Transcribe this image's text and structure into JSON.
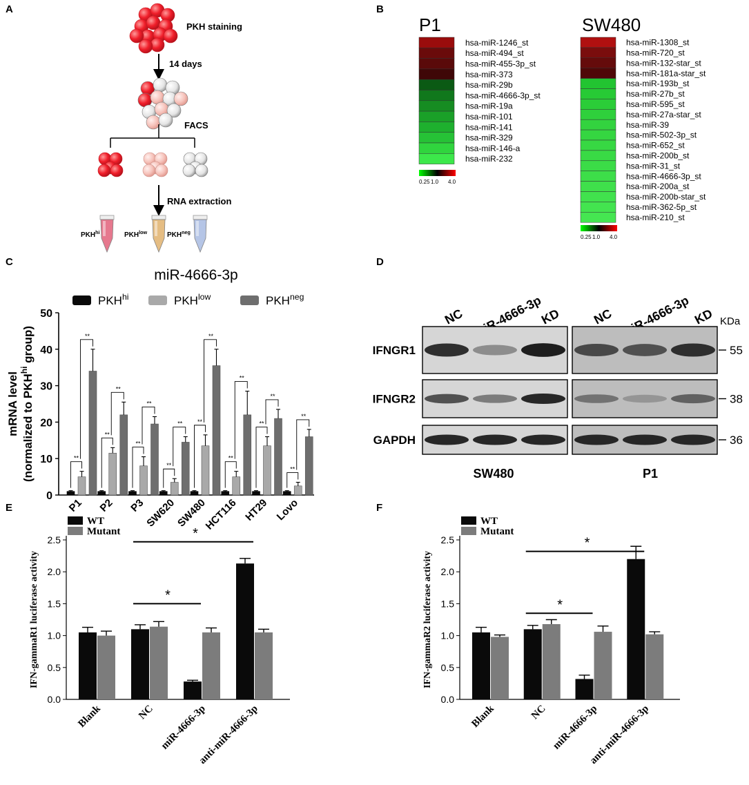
{
  "panels": {
    "A": {
      "letter": "A",
      "steps": {
        "staining": "PKH staining",
        "days": "14 days",
        "facs": "FACS",
        "rna": "RNA extraction"
      },
      "tubes": [
        {
          "base": "PKH",
          "sup": "hi",
          "color": "#e46a82"
        },
        {
          "base": "PKH",
          "sup": "low",
          "color": "#e3b676"
        },
        {
          "base": "PKH",
          "sup": "neg",
          "color": "#aebfe4"
        }
      ]
    },
    "B": {
      "letter": "B",
      "color_scale": {
        "labels": [
          "0.25",
          "1.0",
          "4.0"
        ],
        "low": "#00ff00",
        "mid": "#000000",
        "high": "#ff0000"
      },
      "heatmaps": [
        {
          "title": "P1",
          "rows": [
            {
              "label": "hsa-miR-1246_st",
              "color": "#9a0c0c"
            },
            {
              "label": "hsa-miR-494_st",
              "color": "#6a0b0b"
            },
            {
              "label": "hsa-miR-455-3p_st",
              "color": "#5a0a0a"
            },
            {
              "label": "hsa-miR-373",
              "color": "#3f0707"
            },
            {
              "label": "hsa-miR-29b",
              "color": "#0b5a14"
            },
            {
              "label": "hsa-miR-4666-3p_st",
              "color": "#10781c"
            },
            {
              "label": "hsa-miR-19a",
              "color": "#168c22"
            },
            {
              "label": "hsa-miR-101",
              "color": "#1aa028"
            },
            {
              "label": "hsa-miR-141",
              "color": "#1eb02e"
            },
            {
              "label": "hsa-miR-329",
              "color": "#26c236"
            },
            {
              "label": "hsa-miR-146-a",
              "color": "#30d53e"
            },
            {
              "label": "hsa-miR-232",
              "color": "#3ce84a"
            }
          ]
        },
        {
          "title": "SW480",
          "rows": [
            {
              "label": "hsa-miR-1308_st",
              "color": "#b01010"
            },
            {
              "label": "hsa-miR-720_st",
              "color": "#7a0d0d"
            },
            {
              "label": "hsa-miR-132-star_st",
              "color": "#650b0b"
            },
            {
              "label": "hsa-miR-181a-star_st",
              "color": "#4f0808"
            },
            {
              "label": "hsa-miR-193b_st",
              "color": "#22c431"
            },
            {
              "label": "hsa-miR-27b_st",
              "color": "#27ca35"
            },
            {
              "label": "hsa-miR-595_st",
              "color": "#2bcd38"
            },
            {
              "label": "hsa-miR-27a-star_st",
              "color": "#2fd03c"
            },
            {
              "label": "hsa-miR-39",
              "color": "#33d33f"
            },
            {
              "label": "hsa-miR-502-3p_st",
              "color": "#35d641"
            },
            {
              "label": "hsa-miR-652_st",
              "color": "#37d843"
            },
            {
              "label": "hsa-miR-200b_st",
              "color": "#39da45"
            },
            {
              "label": "hsa-miR-31_st",
              "color": "#3bdc47"
            },
            {
              "label": "hsa-miR-4666-3p_st",
              "color": "#3dde49"
            },
            {
              "label": "hsa-miR-200a_st",
              "color": "#3fe04b"
            },
            {
              "label": "hsa-miR-200b-star_st",
              "color": "#41e24d"
            },
            {
              "label": "hsa-miR-362-5p_st",
              "color": "#43e44f"
            },
            {
              "label": "hsa-miR-210_st",
              "color": "#45e651"
            }
          ]
        }
      ]
    },
    "C": {
      "letter": "C",
      "sig": "**"
    },
    "D": {
      "letter": "D",
      "lanes": [
        "NC",
        "miR-4666-3p",
        "KD"
      ],
      "kda_label": "KDa",
      "proteins": [
        {
          "name": "IFNGR1",
          "kda": "55"
        },
        {
          "name": "IFNGR2",
          "kda": "38"
        },
        {
          "name": "GAPDH",
          "kda": "36"
        }
      ],
      "cells": [
        "SW480",
        "P1"
      ],
      "band_intensity": {
        "SW480": [
          [
            0.9,
            0.35,
            1.0
          ],
          [
            0.7,
            0.45,
            0.95
          ],
          [
            0.95,
            0.95,
            0.95
          ]
        ],
        "P1": [
          [
            0.75,
            0.7,
            0.9
          ],
          [
            0.5,
            0.3,
            0.6
          ],
          [
            0.95,
            0.95,
            0.95
          ]
        ]
      }
    },
    "E": {
      "letter": "E",
      "sig": "*"
    },
    "F": {
      "letter": "F",
      "sig": "*"
    }
  },
  "chart_data": [
    {
      "panel": "C",
      "type": "bar",
      "title": "miR-4666-3p",
      "ylabel_line1": "mRNA level",
      "ylabel_line2_pre": "(normalized to PKH",
      "ylabel_line2_sup": "hi",
      "ylabel_line2_post": " group)",
      "ylim": [
        0,
        50
      ],
      "yticks": [
        "0",
        "10",
        "20",
        "30",
        "40",
        "50"
      ],
      "categories": [
        "P1",
        "P2",
        "P3",
        "SW620",
        "SW480",
        "HCT116",
        "HT29",
        "Lovo"
      ],
      "legend_position": "top",
      "series": [
        {
          "name": "PKH",
          "sup": "hi",
          "color": "#0a0a0a",
          "values": [
            1,
            1,
            1,
            1,
            1,
            1,
            1,
            1
          ],
          "errors": [
            0.2,
            0.2,
            0.2,
            0.2,
            0.2,
            0.2,
            0.2,
            0.2
          ]
        },
        {
          "name": "PKH",
          "sup": "low",
          "color": "#a9a9a9",
          "values": [
            5,
            11.5,
            8,
            3.5,
            13.5,
            5,
            13.5,
            2.5
          ],
          "errors": [
            1.5,
            1.5,
            2.5,
            1,
            3,
            1.5,
            2.5,
            1
          ]
        },
        {
          "name": "PKH",
          "sup": "neg",
          "color": "#6e6e6e",
          "values": [
            34,
            22,
            19.5,
            14.5,
            35.5,
            22,
            21,
            16
          ],
          "errors": [
            6,
            3.5,
            2,
            1.5,
            4.5,
            6.5,
            2.5,
            2
          ]
        }
      ]
    },
    {
      "panel": "E",
      "type": "bar",
      "ylabel": "IFN-gammaR1 luciferase activity",
      "ylim": [
        0,
        2.5
      ],
      "yticks": [
        "0.0",
        "0.5",
        "1.0",
        "1.5",
        "2.0",
        "2.5"
      ],
      "categories": [
        "Blank",
        "NC",
        "miR-4666-3p",
        "anti-miR-4666-3p"
      ],
      "legend_position": "top-left",
      "series": [
        {
          "name": "WT",
          "color": "#0a0a0a",
          "values": [
            1.05,
            1.1,
            0.28,
            2.13
          ],
          "errors": [
            0.08,
            0.07,
            0.02,
            0.08
          ]
        },
        {
          "name": "Mutant",
          "color": "#7c7c7c",
          "values": [
            1.0,
            1.14,
            1.05,
            1.05
          ],
          "errors": [
            0.07,
            0.08,
            0.07,
            0.05
          ]
        }
      ]
    },
    {
      "panel": "F",
      "type": "bar",
      "ylabel": "IFN-gammaR2 luciferase activity",
      "ylim": [
        0,
        2.5
      ],
      "yticks": [
        "0.0",
        "0.5",
        "1.0",
        "1.5",
        "2.0",
        "2.5"
      ],
      "categories": [
        "Blank",
        "NC",
        "miR-4666-3p",
        "anti-miR-4666-3p"
      ],
      "legend_position": "top-left",
      "series": [
        {
          "name": "WT",
          "color": "#0a0a0a",
          "values": [
            1.05,
            1.1,
            0.32,
            2.2
          ],
          "errors": [
            0.08,
            0.06,
            0.06,
            0.2
          ]
        },
        {
          "name": "Mutant",
          "color": "#7c7c7c",
          "values": [
            0.98,
            1.18,
            1.06,
            1.02
          ],
          "errors": [
            0.03,
            0.07,
            0.09,
            0.04
          ]
        }
      ]
    }
  ]
}
